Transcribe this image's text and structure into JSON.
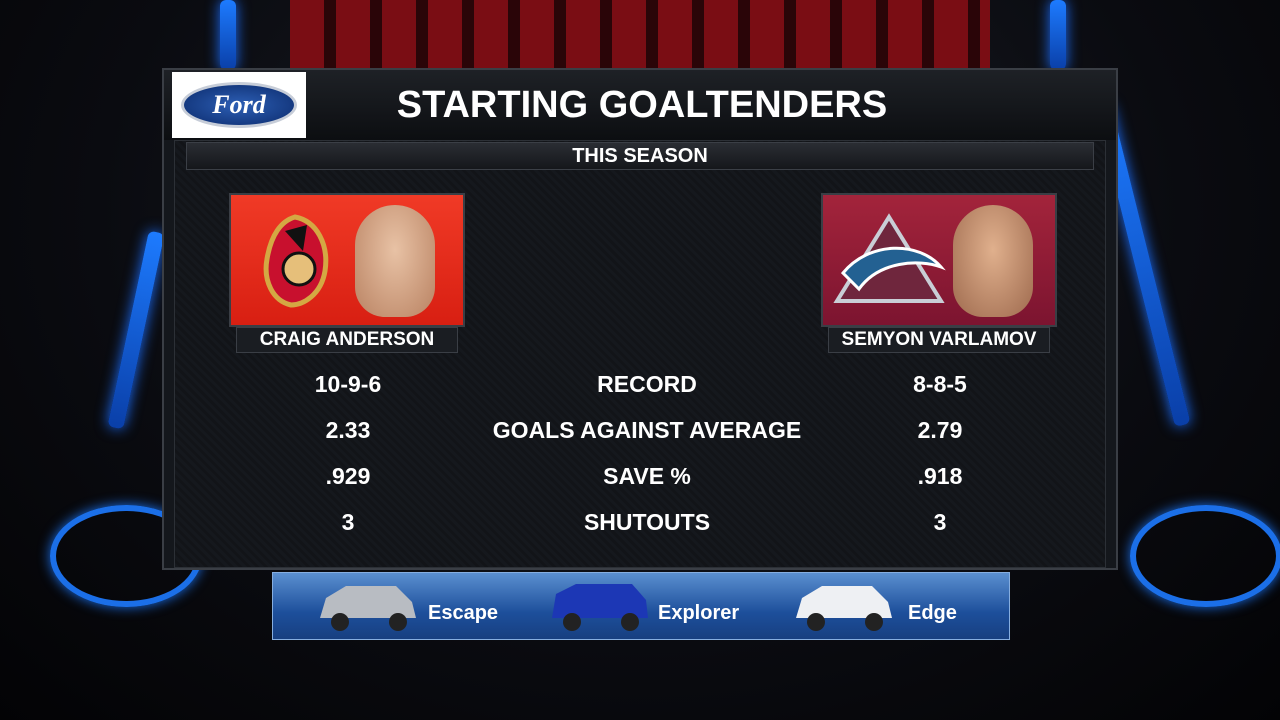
{
  "header": {
    "sponsor": "Ford",
    "title": "STARTING GOALTENDERS",
    "subtitle": "THIS SEASON"
  },
  "players": [
    {
      "name": "CRAIG ANDERSON"
    },
    {
      "name": "SEMYON VARLAMOV"
    }
  ],
  "stats": [
    {
      "label": "RECORD",
      "left": "10-9-6",
      "right": "8-8-5"
    },
    {
      "label": "GOALS AGAINST AVERAGE",
      "left": "2.33",
      "right": "2.79"
    },
    {
      "label": "SAVE %",
      "left": ".929",
      "right": ".918"
    },
    {
      "label": "SHUTOUTS",
      "left": "3",
      "right": "3"
    }
  ],
  "footer": {
    "cars": [
      "Escape",
      "Explorer",
      "Edge"
    ]
  }
}
